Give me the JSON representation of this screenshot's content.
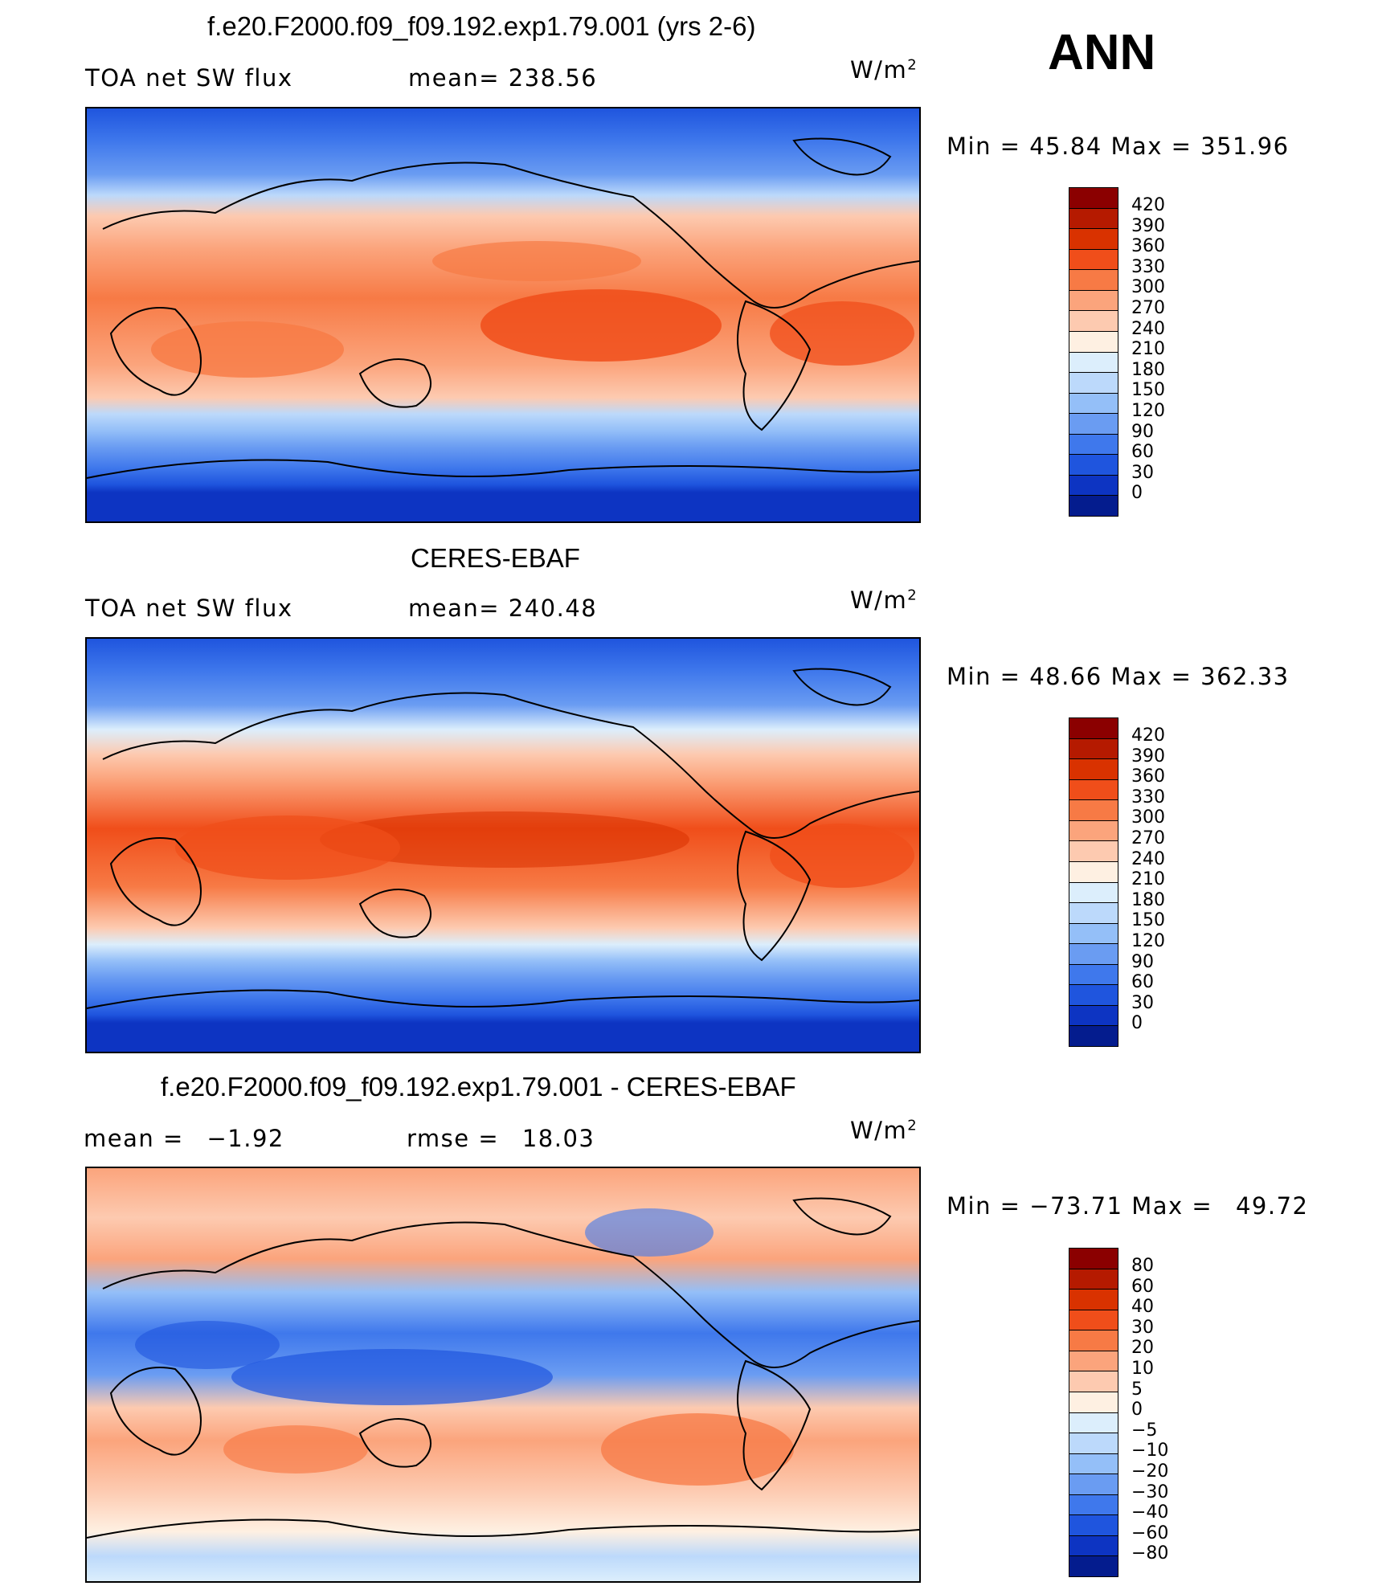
{
  "season": "ANN",
  "panels": [
    {
      "title": "f.e20.F2000.f09_f09.192.exp1.79.001 (yrs 2-6)",
      "variable": "TOA net SW flux",
      "stat1_label": "mean=",
      "stat1_value": "238.56",
      "stat2_label": "",
      "stat2_value": "",
      "units": "W/m",
      "units_sup": "2",
      "min_label": "Min =",
      "min_value": "45.84",
      "max_label": "Max =",
      "max_value": "351.96",
      "colorbar_labels": [
        "420",
        "390",
        "360",
        "330",
        "300",
        "270",
        "240",
        "210",
        "180",
        "150",
        "120",
        "90",
        "60",
        "30",
        "0"
      ],
      "colorbar_colors": [
        "#8b0000",
        "#b51a00",
        "#d93200",
        "#f04e1a",
        "#f77a45",
        "#fba47c",
        "#fdcab0",
        "#fef0e2",
        "#dceefc",
        "#bcd9fb",
        "#94bff8",
        "#6a9cf2",
        "#3f78ec",
        "#1f55de",
        "#0d34c2",
        "#041c8e"
      ]
    },
    {
      "title": "CERES-EBAF",
      "variable": "TOA net SW flux",
      "stat1_label": "mean=",
      "stat1_value": "240.48",
      "stat2_label": "",
      "stat2_value": "",
      "units": "W/m",
      "units_sup": "2",
      "min_label": "Min =",
      "min_value": "48.66",
      "max_label": "Max =",
      "max_value": "362.33",
      "colorbar_labels": [
        "420",
        "390",
        "360",
        "330",
        "300",
        "270",
        "240",
        "210",
        "180",
        "150",
        "120",
        "90",
        "60",
        "30",
        "0"
      ],
      "colorbar_colors": [
        "#8b0000",
        "#b51a00",
        "#d93200",
        "#f04e1a",
        "#f77a45",
        "#fba47c",
        "#fdcab0",
        "#fef0e2",
        "#dceefc",
        "#bcd9fb",
        "#94bff8",
        "#6a9cf2",
        "#3f78ec",
        "#1f55de",
        "#0d34c2",
        "#041c8e"
      ]
    },
    {
      "title": "f.e20.F2000.f09_f09.192.exp1.79.001 - CERES-EBAF",
      "variable": "",
      "stat1_label": "mean =",
      "stat1_value": "−1.92",
      "stat2_label": "rmse =",
      "stat2_value": "18.03",
      "units": "W/m",
      "units_sup": "2",
      "min_label": "Min =",
      "min_value": "−73.71",
      "max_label": "Max =",
      "max_value": "49.72",
      "colorbar_labels": [
        "80",
        "60",
        "40",
        "30",
        "20",
        "10",
        "5",
        "0",
        "−5",
        "−10",
        "−20",
        "−30",
        "−40",
        "−60",
        "−80"
      ],
      "colorbar_colors": [
        "#8b0000",
        "#b51a00",
        "#d93200",
        "#f04e1a",
        "#f77a45",
        "#fba47c",
        "#fdcab0",
        "#fef0e2",
        "#dceefc",
        "#bcd9fb",
        "#94bff8",
        "#6a9cf2",
        "#3f78ec",
        "#1f55de",
        "#0d34c2",
        "#041c8e"
      ]
    }
  ]
}
